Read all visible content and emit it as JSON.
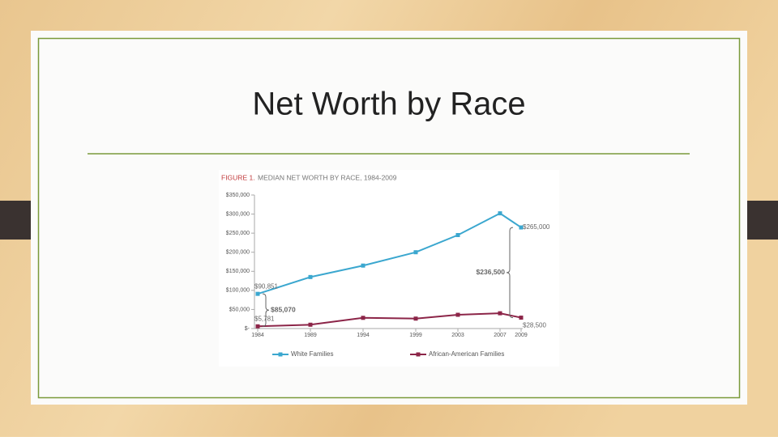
{
  "slide": {
    "title": "Net Worth by Race"
  },
  "chart_data": {
    "type": "line",
    "figure_label": "FIGURE 1.",
    "title": "MEDIAN NET WORTH BY RACE, 1984-2009",
    "x": [
      1984,
      1989,
      1994,
      1999,
      2003,
      2007,
      2009
    ],
    "xlim": [
      1984,
      2009
    ],
    "xticks": [
      1984,
      1989,
      1994,
      1999,
      2003,
      2007,
      2009
    ],
    "ylim": [
      0,
      350000
    ],
    "yticks": [
      {
        "value": 0,
        "label": "$-"
      },
      {
        "value": 50000,
        "label": "$50,000"
      },
      {
        "value": 100000,
        "label": "$100,000"
      },
      {
        "value": 150000,
        "label": "$150,000"
      },
      {
        "value": 200000,
        "label": "$200,000"
      },
      {
        "value": 250000,
        "label": "$250,000"
      },
      {
        "value": 300000,
        "label": "$300,000"
      },
      {
        "value": 350000,
        "label": "$350,000"
      }
    ],
    "series": [
      {
        "name": "White Families",
        "color": "#3ba7cf",
        "values": [
          90851,
          135000,
          165000,
          200000,
          245000,
          302000,
          265000
        ],
        "value_labels": [
          "$90,851",
          null,
          null,
          null,
          null,
          null,
          "$265,000"
        ]
      },
      {
        "name": "African-American Families",
        "color": "#8c2548",
        "values": [
          5781,
          10000,
          28000,
          26000,
          36000,
          40000,
          28500
        ],
        "value_labels": [
          "$5,781",
          null,
          null,
          null,
          null,
          null,
          "$28,500"
        ]
      }
    ],
    "annotations": [
      {
        "x": 1984,
        "value": 85070,
        "label": "$85,070"
      },
      {
        "x": 2009,
        "value": 236500,
        "label": "$236,500"
      }
    ],
    "legend": "bottom"
  }
}
